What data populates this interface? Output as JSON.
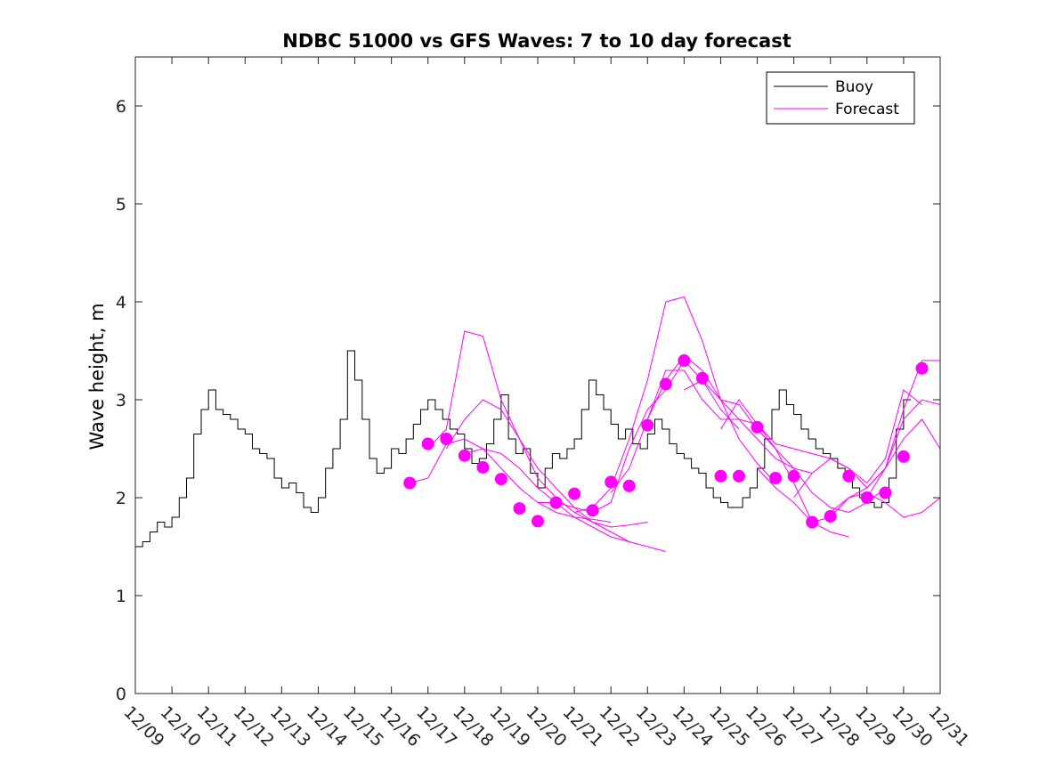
{
  "chart_data": {
    "type": "line",
    "title": "NDBC 51000 vs GFS Waves: 7 to 10 day forecast",
    "xlabel": "",
    "ylabel": "Wave height, m",
    "ylim": [
      0,
      6.5
    ],
    "yticks": [
      0,
      1,
      2,
      3,
      4,
      5,
      6
    ],
    "xlim": [
      0,
      22
    ],
    "xtick_labels": [
      "12/09",
      "12/10",
      "12/11",
      "12/12",
      "12/13",
      "12/14",
      "12/15",
      "12/16",
      "12/17",
      "12/18",
      "12/19",
      "12/20",
      "12/21",
      "12/22",
      "12/23",
      "12/24",
      "12/25",
      "12/26",
      "12/27",
      "12/28",
      "12/29",
      "12/30",
      "12/31"
    ],
    "x_units": "days since 12/09 00:00",
    "grid": false,
    "legend": {
      "position": "top-right",
      "entries": [
        "Buoy",
        "Forecast"
      ]
    },
    "colors": {
      "buoy": "#000000",
      "forecast": "#ff00ff"
    },
    "series": [
      {
        "name": "Buoy",
        "x": [
          0,
          0.2,
          0.4,
          0.6,
          0.8,
          1.0,
          1.2,
          1.4,
          1.6,
          1.8,
          2.0,
          2.2,
          2.4,
          2.6,
          2.8,
          3.0,
          3.2,
          3.4,
          3.6,
          3.8,
          4.0,
          4.2,
          4.4,
          4.6,
          4.8,
          5.0,
          5.2,
          5.4,
          5.6,
          5.8,
          6.0,
          6.2,
          6.4,
          6.6,
          6.8,
          7.0,
          7.2,
          7.4,
          7.6,
          7.8,
          8.0,
          8.2,
          8.4,
          8.6,
          8.8,
          9.0,
          9.2,
          9.4,
          9.6,
          9.8,
          10.0,
          10.2,
          10.4,
          10.6,
          10.8,
          11.0,
          11.2,
          11.4,
          11.6,
          11.8,
          12.0,
          12.2,
          12.4,
          12.6,
          12.8,
          13.0,
          13.2,
          13.4,
          13.6,
          13.8,
          14.0,
          14.2,
          14.4,
          14.6,
          14.8,
          15.0,
          15.2,
          15.4,
          15.6,
          15.8,
          16.0,
          16.2,
          16.4,
          16.6,
          16.8,
          17.0,
          17.2,
          17.4,
          17.6,
          17.8,
          18.0,
          18.2,
          18.4,
          18.6,
          18.8,
          19.0,
          19.2,
          19.4,
          19.6,
          19.8,
          20.0,
          20.2,
          20.4,
          20.6,
          20.8,
          21.0,
          21.2
        ],
        "values": [
          1.5,
          1.55,
          1.65,
          1.75,
          1.7,
          1.8,
          2.0,
          2.2,
          2.65,
          2.9,
          3.1,
          2.9,
          2.85,
          2.8,
          2.7,
          2.65,
          2.5,
          2.45,
          2.4,
          2.2,
          2.1,
          2.15,
          2.05,
          1.9,
          1.85,
          2.0,
          2.3,
          2.5,
          2.8,
          3.5,
          3.2,
          2.8,
          2.4,
          2.25,
          2.3,
          2.5,
          2.45,
          2.6,
          2.75,
          2.9,
          3.0,
          2.9,
          2.8,
          2.7,
          2.65,
          2.5,
          2.35,
          2.4,
          2.55,
          2.8,
          3.05,
          2.6,
          2.45,
          2.5,
          2.25,
          2.1,
          2.3,
          2.45,
          2.4,
          2.5,
          2.6,
          2.9,
          3.2,
          3.05,
          2.9,
          2.75,
          2.6,
          2.7,
          2.55,
          2.5,
          2.65,
          2.8,
          2.7,
          2.55,
          2.45,
          2.4,
          2.3,
          2.25,
          2.1,
          2.0,
          1.95,
          1.9,
          1.9,
          2.0,
          2.1,
          2.3,
          2.6,
          2.9,
          3.1,
          2.95,
          2.85,
          2.7,
          2.6,
          2.5,
          2.45,
          2.4,
          2.3,
          2.2,
          2.1,
          2.0,
          1.95,
          1.9,
          1.95,
          2.2,
          2.7,
          3.0,
          3.0
        ]
      },
      {
        "name": "Forecast",
        "x": [
          7.5,
          8.0,
          8.5,
          9.0,
          9.5,
          10.0,
          10.5,
          11.0,
          11.5,
          12.0,
          12.5,
          13.0
        ],
        "values": [
          2.15,
          2.2,
          2.55,
          2.6,
          2.5,
          2.3,
          2.1,
          1.95,
          1.85,
          1.8,
          1.78,
          1.75
        ]
      },
      {
        "name": "Forecast",
        "x": [
          8.0,
          8.5,
          9.0,
          9.5,
          10.0,
          10.5,
          11.0,
          11.5,
          12.0,
          12.5,
          13.0,
          13.5
        ],
        "values": [
          2.5,
          2.7,
          3.7,
          3.65,
          3.0,
          2.6,
          2.2,
          2.0,
          1.85,
          1.75,
          1.65,
          1.55
        ]
      },
      {
        "name": "Forecast",
        "x": [
          8.5,
          9.0,
          9.5,
          10.0,
          10.5,
          11.0,
          11.5,
          12.0,
          12.5,
          13.0,
          13.5,
          14.0
        ],
        "values": [
          2.5,
          2.8,
          3.0,
          2.9,
          2.6,
          2.3,
          2.1,
          1.9,
          1.75,
          1.7,
          1.72,
          1.75
        ]
      },
      {
        "name": "Forecast",
        "x": [
          9.0,
          9.5,
          10.0,
          10.5,
          11.0,
          11.5,
          12.0,
          12.5,
          13.0,
          13.5,
          14.0,
          14.5
        ],
        "values": [
          2.45,
          2.5,
          2.45,
          2.3,
          2.1,
          1.95,
          1.8,
          1.7,
          1.6,
          1.55,
          1.5,
          1.45
        ]
      },
      {
        "name": "Forecast",
        "x": [
          11.0,
          11.5,
          12.0,
          12.5,
          13.0,
          13.5,
          14.0,
          14.5,
          15.0,
          15.5,
          16.0,
          16.5
        ],
        "values": [
          1.95,
          1.95,
          1.9,
          1.85,
          1.95,
          2.5,
          2.9,
          3.1,
          3.4,
          3.2,
          2.9,
          2.7
        ]
      },
      {
        "name": "Forecast",
        "x": [
          12.0,
          12.5,
          13.0,
          13.5,
          14.0,
          14.5,
          15.0,
          15.5,
          16.0,
          16.5,
          17.0,
          17.5
        ],
        "values": [
          1.85,
          1.9,
          2.1,
          2.6,
          3.2,
          4.0,
          4.05,
          3.6,
          3.0,
          2.6,
          2.35,
          2.15
        ]
      },
      {
        "name": "Forecast",
        "x": [
          13.0,
          13.5,
          14.0,
          14.5,
          15.0,
          15.5,
          16.0,
          16.5,
          17.0,
          17.5,
          18.0,
          18.5
        ],
        "values": [
          2.05,
          2.3,
          2.8,
          3.2,
          3.45,
          3.3,
          3.0,
          2.8,
          2.6,
          2.4,
          2.3,
          2.25
        ]
      },
      {
        "name": "Forecast",
        "x": [
          14.0,
          14.5,
          15.0,
          15.5,
          16.0,
          16.5,
          17.0,
          17.5,
          18.0,
          18.5,
          19.0,
          19.5
        ],
        "values": [
          2.8,
          3.3,
          3.3,
          3.0,
          2.8,
          2.8,
          2.75,
          2.5,
          2.15,
          1.75,
          1.65,
          1.6
        ]
      },
      {
        "name": "Forecast",
        "x": [
          15.0,
          15.5,
          16.0,
          16.5,
          17.0,
          17.5,
          18.0,
          18.5,
          19.0,
          19.5,
          20.0,
          20.5
        ],
        "values": [
          3.1,
          3.2,
          3.0,
          2.95,
          2.7,
          2.5,
          2.3,
          2.05,
          1.9,
          1.85,
          1.95,
          2.1
        ]
      },
      {
        "name": "Forecast",
        "x": [
          16.0,
          16.5,
          17.0,
          17.5,
          18.0,
          18.5,
          19.0,
          19.5,
          20.0,
          20.5,
          21.0,
          21.5
        ],
        "values": [
          2.7,
          3.0,
          2.75,
          2.55,
          2.5,
          2.45,
          2.4,
          2.3,
          2.15,
          2.4,
          3.1,
          2.95
        ]
      },
      {
        "name": "Forecast",
        "x": [
          17.0,
          17.5,
          18.0,
          18.5,
          19.0,
          19.5,
          20.0,
          20.5,
          21.0,
          21.5,
          22.0
        ],
        "values": [
          2.3,
          2.1,
          1.95,
          1.75,
          1.8,
          2.0,
          2.1,
          2.3,
          2.8,
          3.0,
          2.95
        ]
      },
      {
        "name": "Forecast",
        "x": [
          18.0,
          18.5,
          19.0,
          19.5,
          20.0,
          20.5,
          21.0,
          21.5,
          22.0
        ],
        "values": [
          2.0,
          2.25,
          2.4,
          2.3,
          2.1,
          2.3,
          2.9,
          3.4,
          3.4
        ]
      },
      {
        "name": "Forecast",
        "x": [
          19.0,
          19.5,
          20.0,
          20.5,
          21.0,
          21.5,
          22.0
        ],
        "values": [
          1.85,
          2.0,
          2.05,
          1.95,
          1.8,
          1.85,
          2.0
        ]
      },
      {
        "name": "Forecast",
        "x": [
          20.0,
          20.5,
          21.0,
          21.5,
          22.0
        ],
        "values": [
          2.0,
          2.3,
          2.6,
          2.8,
          2.5
        ]
      }
    ],
    "forecast_markers": {
      "x": [
        7.5,
        8.0,
        8.5,
        9.0,
        9.5,
        10.0,
        10.5,
        11.0,
        11.5,
        12.0,
        12.5,
        13.0,
        13.5,
        14.0,
        14.5,
        15.0,
        15.5,
        16.0,
        16.5,
        17.0,
        17.5,
        18.0,
        18.5,
        19.0,
        19.5,
        20.0,
        20.5,
        21.0,
        21.5
      ],
      "values": [
        2.15,
        2.55,
        2.6,
        2.43,
        2.31,
        2.19,
        1.89,
        1.76,
        1.95,
        2.04,
        1.87,
        2.16,
        2.12,
        2.74,
        3.16,
        3.4,
        3.22,
        2.22,
        2.22,
        2.72,
        2.2,
        2.22,
        1.75,
        1.81,
        2.22,
        2.0,
        2.05,
        2.42,
        3.32
      ]
    }
  }
}
